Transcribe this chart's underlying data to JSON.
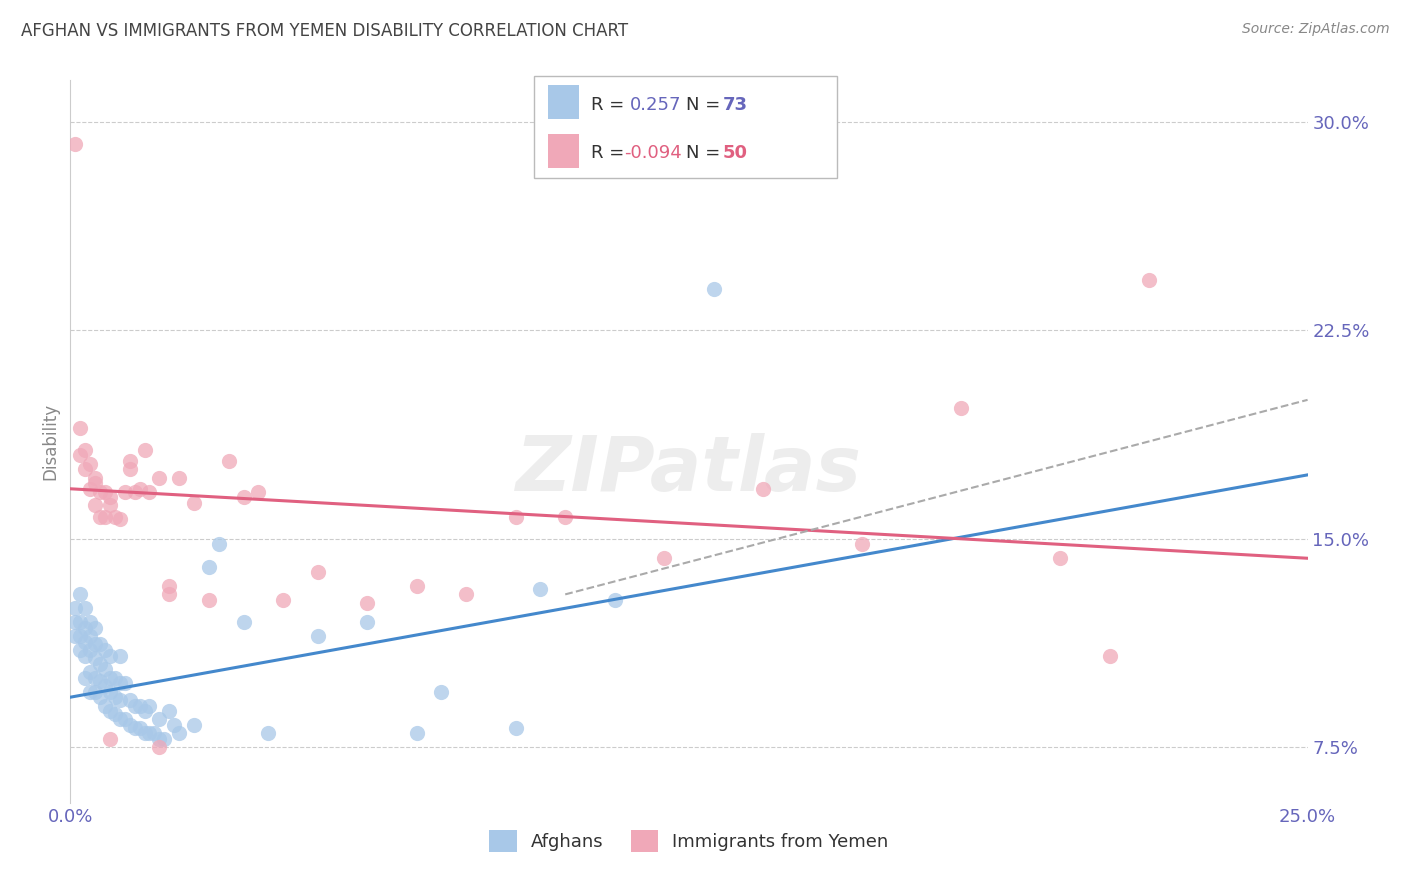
{
  "title": "AFGHAN VS IMMIGRANTS FROM YEMEN DISABILITY CORRELATION CHART",
  "source": "Source: ZipAtlas.com",
  "ylabel": "Disability",
  "watermark": "ZIPatlas",
  "xlim": [
    0.0,
    0.25
  ],
  "ylim": [
    0.055,
    0.315
  ],
  "yticks_right": [
    0.075,
    0.15,
    0.225,
    0.3
  ],
  "ytick_labels_right": [
    "7.5%",
    "15.0%",
    "22.5%",
    "30.0%"
  ],
  "xticks": [
    0.0,
    0.05,
    0.1,
    0.15,
    0.2,
    0.25
  ],
  "xtick_labels": [
    "0.0%",
    "",
    "",
    "",
    "",
    "25.0%"
  ],
  "legend_r_blue": "0.257",
  "legend_n_blue": "73",
  "legend_r_pink": "-0.094",
  "legend_n_pink": "50",
  "blue_color": "#a8c8e8",
  "pink_color": "#f0a8b8",
  "blue_line_color": "#4488cc",
  "pink_line_color": "#e06080",
  "dashed_color": "#aaaaaa",
  "background_color": "#ffffff",
  "grid_color": "#cccccc",
  "title_color": "#444444",
  "source_color": "#888888",
  "tick_color": "#6666bb",
  "ylabel_color": "#888888",
  "blue_scatter_x": [
    0.001,
    0.001,
    0.001,
    0.002,
    0.002,
    0.002,
    0.002,
    0.003,
    0.003,
    0.003,
    0.003,
    0.003,
    0.004,
    0.004,
    0.004,
    0.004,
    0.004,
    0.005,
    0.005,
    0.005,
    0.005,
    0.005,
    0.006,
    0.006,
    0.006,
    0.006,
    0.007,
    0.007,
    0.007,
    0.007,
    0.008,
    0.008,
    0.008,
    0.008,
    0.009,
    0.009,
    0.009,
    0.01,
    0.01,
    0.01,
    0.01,
    0.011,
    0.011,
    0.012,
    0.012,
    0.013,
    0.013,
    0.014,
    0.014,
    0.015,
    0.015,
    0.016,
    0.016,
    0.017,
    0.018,
    0.018,
    0.019,
    0.02,
    0.021,
    0.022,
    0.025,
    0.028,
    0.03,
    0.035,
    0.04,
    0.05,
    0.06,
    0.07,
    0.075,
    0.09,
    0.095,
    0.11,
    0.13
  ],
  "blue_scatter_y": [
    0.115,
    0.12,
    0.125,
    0.11,
    0.115,
    0.12,
    0.13,
    0.1,
    0.108,
    0.113,
    0.118,
    0.125,
    0.095,
    0.102,
    0.11,
    0.115,
    0.12,
    0.095,
    0.1,
    0.107,
    0.112,
    0.118,
    0.093,
    0.099,
    0.105,
    0.112,
    0.09,
    0.097,
    0.103,
    0.11,
    0.088,
    0.095,
    0.1,
    0.108,
    0.087,
    0.093,
    0.1,
    0.085,
    0.092,
    0.098,
    0.108,
    0.085,
    0.098,
    0.083,
    0.092,
    0.082,
    0.09,
    0.082,
    0.09,
    0.08,
    0.088,
    0.08,
    0.09,
    0.08,
    0.078,
    0.085,
    0.078,
    0.088,
    0.083,
    0.08,
    0.083,
    0.14,
    0.148,
    0.12,
    0.08,
    0.115,
    0.12,
    0.08,
    0.095,
    0.082,
    0.132,
    0.128,
    0.24
  ],
  "pink_scatter_x": [
    0.001,
    0.002,
    0.002,
    0.003,
    0.003,
    0.004,
    0.004,
    0.005,
    0.005,
    0.006,
    0.006,
    0.007,
    0.007,
    0.008,
    0.009,
    0.01,
    0.011,
    0.012,
    0.013,
    0.014,
    0.015,
    0.016,
    0.018,
    0.02,
    0.022,
    0.025,
    0.028,
    0.032,
    0.038,
    0.043,
    0.05,
    0.06,
    0.07,
    0.08,
    0.09,
    0.1,
    0.12,
    0.14,
    0.16,
    0.18,
    0.2,
    0.21,
    0.218,
    0.005,
    0.008,
    0.012,
    0.02,
    0.035,
    0.008,
    0.018
  ],
  "pink_scatter_y": [
    0.292,
    0.18,
    0.19,
    0.175,
    0.182,
    0.168,
    0.177,
    0.162,
    0.172,
    0.158,
    0.167,
    0.158,
    0.167,
    0.162,
    0.158,
    0.157,
    0.167,
    0.178,
    0.167,
    0.168,
    0.182,
    0.167,
    0.172,
    0.133,
    0.172,
    0.163,
    0.128,
    0.178,
    0.167,
    0.128,
    0.138,
    0.127,
    0.133,
    0.13,
    0.158,
    0.158,
    0.143,
    0.168,
    0.148,
    0.197,
    0.143,
    0.108,
    0.243,
    0.17,
    0.165,
    0.175,
    0.13,
    0.165,
    0.078,
    0.075
  ],
  "blue_trend": [
    0.0,
    0.25,
    0.093,
    0.173
  ],
  "pink_trend": [
    0.0,
    0.25,
    0.168,
    0.143
  ],
  "dashed_trend": [
    0.1,
    0.25,
    0.13,
    0.2
  ]
}
